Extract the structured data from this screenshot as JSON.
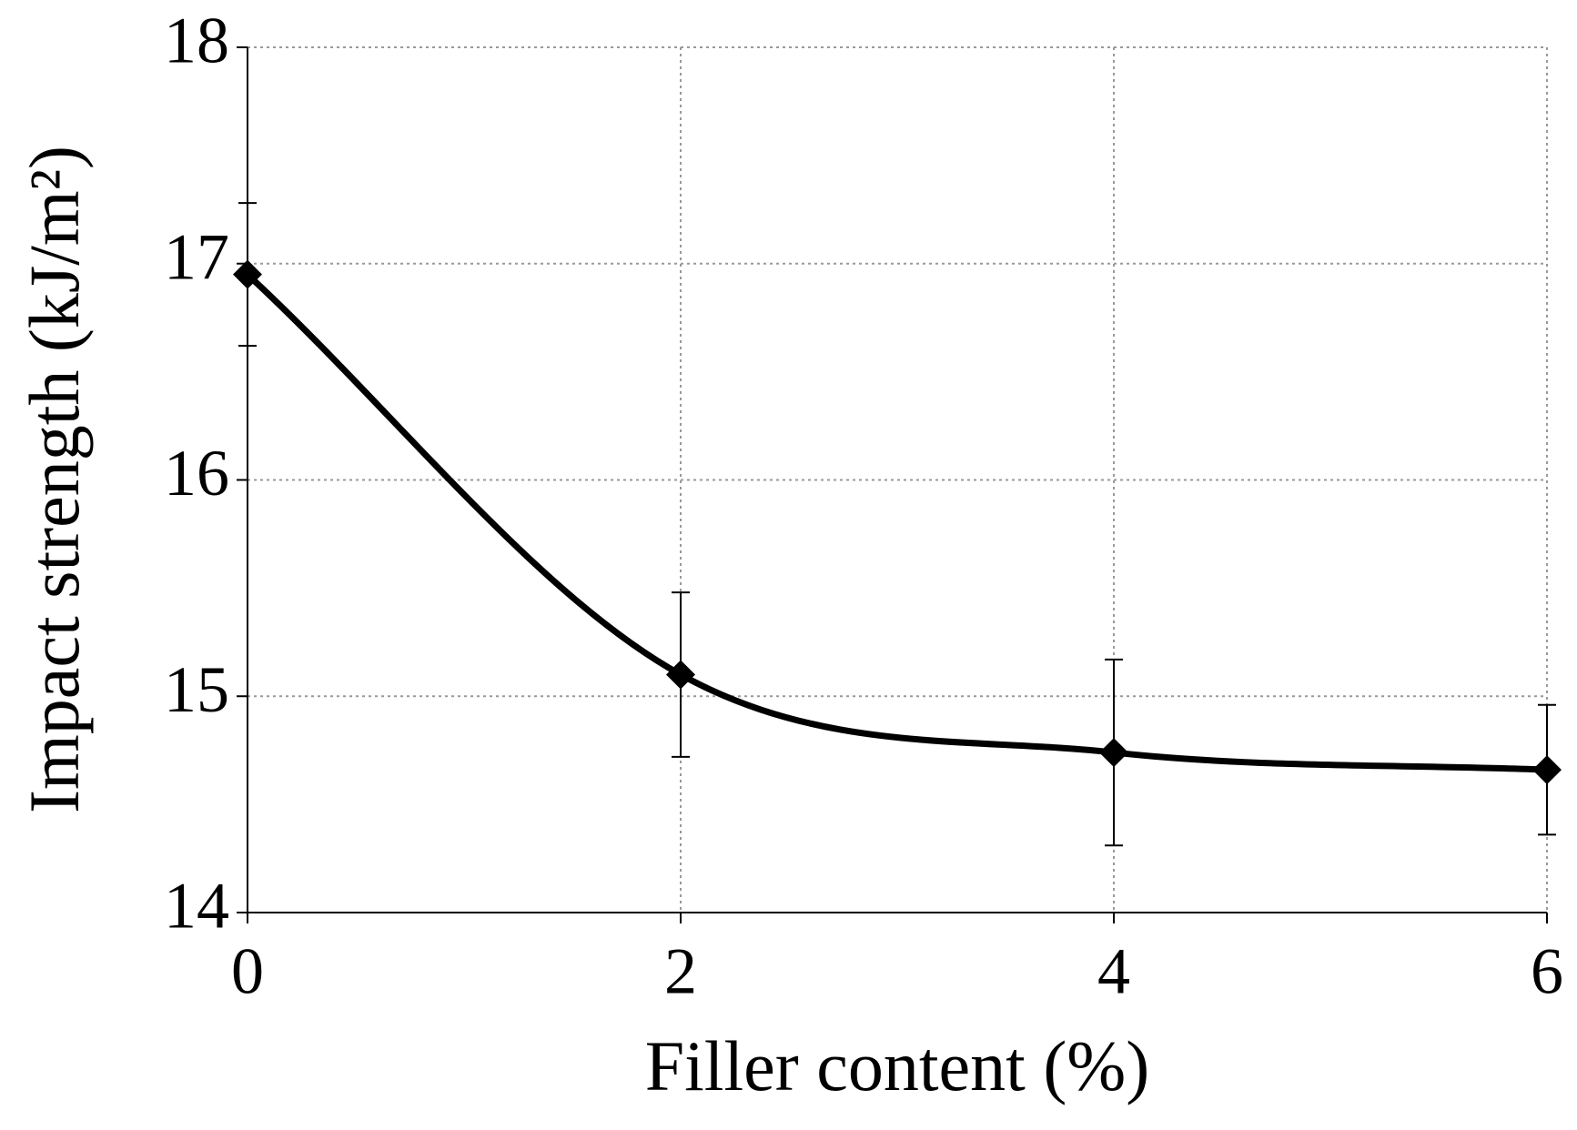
{
  "chart_data": {
    "type": "line",
    "x_label": "Filler content (%)",
    "y_label": "Impact strength (kJ/m²)",
    "x": [
      0,
      2,
      4,
      6
    ],
    "values": [
      16.95,
      15.1,
      14.74,
      14.66
    ],
    "errors": [
      0.33,
      0.38,
      0.43,
      0.3
    ],
    "color": "#000000",
    "marker": "diamond",
    "smooth": true,
    "xlim": [
      0,
      6
    ],
    "xticks": [
      0,
      2,
      4,
      6
    ],
    "ylim": [
      14,
      18
    ],
    "yticks": [
      14,
      15,
      16,
      17,
      18
    ],
    "grid": true
  }
}
